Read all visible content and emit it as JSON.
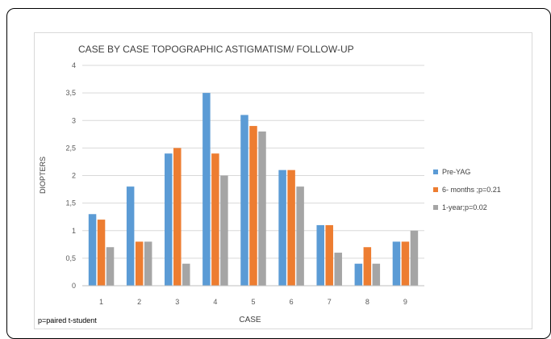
{
  "note": "p=paired t-student",
  "chart_data": {
    "type": "bar",
    "title": "CASE BY CASE TOPOGRAPHIC ASTIGMATISM/ FOLLOW-UP",
    "xlabel": "CASE",
    "ylabel": "DIOPTERS",
    "categories": [
      "1",
      "2",
      "3",
      "4",
      "5",
      "6",
      "7",
      "8",
      "9"
    ],
    "ylim": [
      0,
      4
    ],
    "yticks": [
      "0",
      "0,5",
      "1",
      "1,5",
      "2",
      "2,5",
      "3",
      "3,5",
      "4"
    ],
    "grid": true,
    "legend_position": "right",
    "series": [
      {
        "name": "Pre-YAG",
        "color": "#5b9bd5",
        "values": [
          1.3,
          1.8,
          2.4,
          3.5,
          3.1,
          2.1,
          1.1,
          0.4,
          0.8
        ]
      },
      {
        "name": "6- months ;p=0.21",
        "color": "#ed7d31",
        "values": [
          1.2,
          0.8,
          2.5,
          2.4,
          2.9,
          2.1,
          1.1,
          0.7,
          0.8
        ]
      },
      {
        "name": "1-year;p=0.02",
        "color": "#a5a5a5",
        "values": [
          0.7,
          0.8,
          0.4,
          2.0,
          2.8,
          1.8,
          0.6,
          0.4,
          1.0
        ]
      }
    ]
  }
}
